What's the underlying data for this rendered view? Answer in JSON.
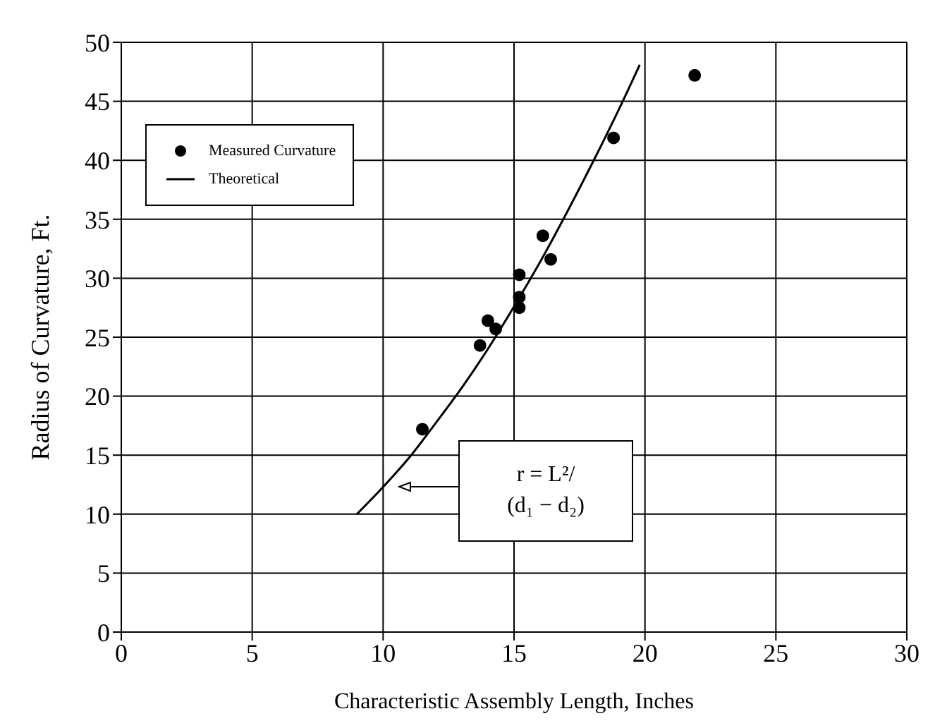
{
  "chart_data": {
    "type": "scatter",
    "xlabel": "Characteristic Assembly Length, Inches",
    "ylabel": "Radius of Curvature, Ft.",
    "xlim": [
      0,
      30
    ],
    "xticks": [
      0,
      5,
      10,
      15,
      20,
      25,
      30
    ],
    "ylim": [
      0,
      50
    ],
    "yticks": [
      0,
      5,
      10,
      15,
      20,
      25,
      30,
      35,
      40,
      45,
      50
    ],
    "grid": true,
    "legend": "top left",
    "series": [
      {
        "name": "Measured Curvature",
        "type": "scatter",
        "marker": "circle",
        "color": "#000000",
        "x": [
          11.5,
          13.7,
          14.0,
          14.3,
          15.2,
          15.2,
          15.2,
          16.1,
          16.4,
          18.8,
          21.9
        ],
        "values": [
          17.2,
          24.3,
          26.4,
          25.7,
          30.3,
          28.4,
          27.5,
          33.6,
          31.6,
          41.9,
          47.2
        ]
      },
      {
        "name": "Theoretical",
        "type": "line",
        "marker": "none",
        "color": "#000000",
        "x": [
          9,
          10,
          11,
          12,
          13,
          14,
          15,
          16,
          17,
          18,
          19,
          19.8
        ],
        "values": [
          10.0,
          12.3,
          14.8,
          17.7,
          20.7,
          24.0,
          27.6,
          31.4,
          35.5,
          39.8,
          44.3,
          48.1
        ]
      }
    ],
    "annotations": [
      "r = L²/(d₁ − d₂)"
    ]
  }
}
